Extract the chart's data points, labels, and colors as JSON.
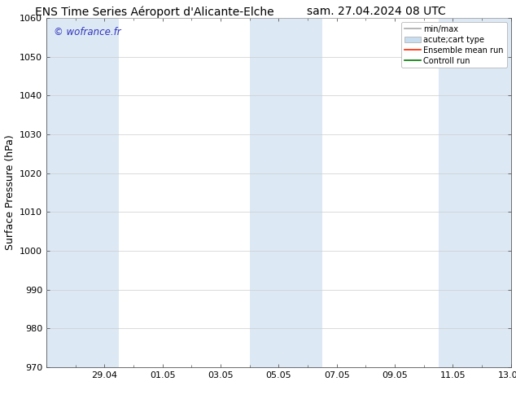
{
  "title_left": "ENS Time Series Aéroport d'Alicante-Elche",
  "title_right": "sam. 27.04.2024 08 UTC",
  "ylabel": "Surface Pressure (hPa)",
  "ylim": [
    970,
    1060
  ],
  "yticks": [
    970,
    980,
    990,
    1000,
    1010,
    1020,
    1030,
    1040,
    1050,
    1060
  ],
  "xtick_labels": [
    "29.04",
    "01.05",
    "03.05",
    "05.05",
    "07.05",
    "09.05",
    "11.05",
    "13.05"
  ],
  "xtick_positions": [
    2,
    4,
    6,
    8,
    10,
    12,
    14,
    16
  ],
  "xlim": [
    0,
    16
  ],
  "shaded_bands": [
    {
      "x_start": 0.0,
      "x_end": 2.5
    },
    {
      "x_start": 7.0,
      "x_end": 9.5
    },
    {
      "x_start": 13.5,
      "x_end": 16.0
    }
  ],
  "shade_color": "#dce9f5",
  "background_color": "#ffffff",
  "watermark_text": "© wofrance.fr",
  "watermark_color": "#3333bb",
  "grid_color": "#cccccc",
  "title_fontsize": 10,
  "tick_fontsize": 8,
  "ylabel_fontsize": 9
}
